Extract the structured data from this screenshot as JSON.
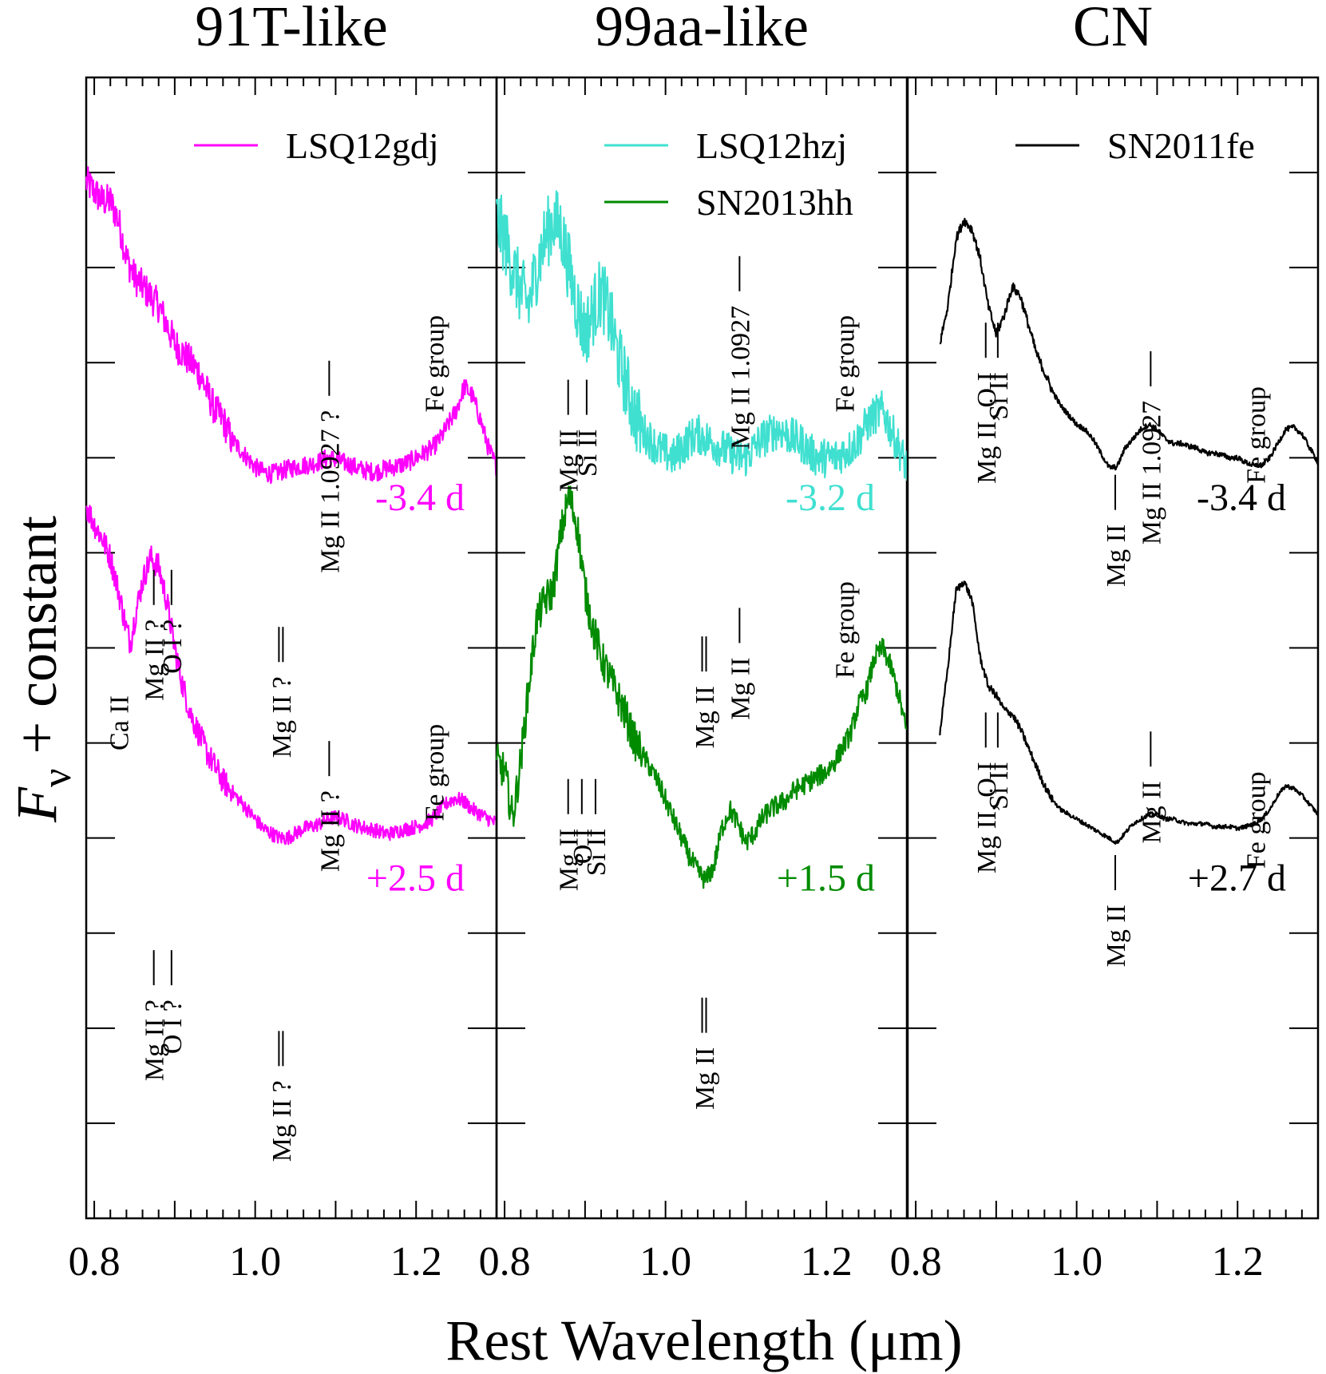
{
  "chart_data": {
    "type": "line",
    "ylabel_main": "F",
    "ylabel_sub": "ν",
    "ylabel_rest": " + constant",
    "xlabel": "Rest Wavelength (μm)",
    "xlim": [
      0.79,
      1.3
    ],
    "xticks": [
      "0.8",
      "1.0",
      "1.2"
    ],
    "panels": [
      {
        "title": "91T-like",
        "legend": [
          {
            "label": "LSQ12gdj",
            "color": "#ff00ff"
          }
        ],
        "spectra": [
          {
            "name": "LSQ12gdj",
            "phase": "-3.4 d",
            "color": "#ff00ff",
            "noise": 0.18,
            "x": [
              0.79,
              0.8,
              0.81,
              0.82,
              0.83,
              0.84,
              0.85,
              0.86,
              0.87,
              0.88,
              0.89,
              0.9,
              0.91,
              0.92,
              0.93,
              0.94,
              0.95,
              0.96,
              0.97,
              0.98,
              0.99,
              1.0,
              1.01,
              1.02,
              1.03,
              1.04,
              1.05,
              1.06,
              1.07,
              1.08,
              1.09,
              1.1,
              1.11,
              1.12,
              1.13,
              1.14,
              1.15,
              1.16,
              1.17,
              1.18,
              1.19,
              1.2,
              1.21,
              1.22,
              1.23,
              1.24,
              1.25,
              1.26,
              1.27,
              1.28,
              1.29,
              1.3
            ],
            "y": [
              10.9,
              10.8,
              10.7,
              10.7,
              10.5,
              10.1,
              9.9,
              9.8,
              9.7,
              9.6,
              9.4,
              9.2,
              9.1,
              9.0,
              8.9,
              8.7,
              8.5,
              8.4,
              8.2,
              8.1,
              8.0,
              7.9,
              7.85,
              7.83,
              7.85,
              7.88,
              7.9,
              7.92,
              7.93,
              7.96,
              8.0,
              7.98,
              7.95,
              7.92,
              7.88,
              7.86,
              7.85,
              7.88,
              7.9,
              7.92,
              7.95,
              8.0,
              8.05,
              8.1,
              8.2,
              8.35,
              8.5,
              8.75,
              8.65,
              8.4,
              8.1,
              7.9
            ]
          },
          {
            "name": "LSQ12gdj",
            "phase": "+2.5 d",
            "color": "#ff00ff",
            "noise": 0.14,
            "x": [
              0.79,
              0.8,
              0.81,
              0.82,
              0.83,
              0.84,
              0.845,
              0.85,
              0.86,
              0.87,
              0.88,
              0.89,
              0.9,
              0.91,
              0.92,
              0.93,
              0.94,
              0.95,
              0.96,
              0.97,
              0.98,
              0.99,
              1.0,
              1.01,
              1.02,
              1.03,
              1.04,
              1.05,
              1.06,
              1.07,
              1.08,
              1.09,
              1.1,
              1.11,
              1.12,
              1.13,
              1.14,
              1.15,
              1.16,
              1.17,
              1.18,
              1.19,
              1.2,
              1.21,
              1.22,
              1.23,
              1.24,
              1.25,
              1.26,
              1.27,
              1.28,
              1.29,
              1.3
            ],
            "y": [
              7.5,
              7.3,
              7.15,
              6.95,
              6.6,
              6.2,
              6.05,
              6.3,
              6.7,
              6.95,
              6.85,
              6.5,
              6.0,
              5.6,
              5.3,
              5.1,
              4.9,
              4.75,
              4.6,
              4.5,
              4.4,
              4.3,
              4.2,
              4.1,
              4.05,
              4.0,
              4.0,
              4.05,
              4.1,
              4.12,
              4.15,
              4.2,
              4.22,
              4.2,
              4.15,
              4.12,
              4.1,
              4.08,
              4.05,
              4.05,
              4.08,
              4.1,
              4.12,
              4.15,
              4.2,
              4.3,
              4.38,
              4.42,
              4.38,
              4.3,
              4.25,
              4.2,
              4.15
            ]
          }
        ],
        "annotations": [
          {
            "text": "Mg II ?",
            "x": 0.874,
            "y": 6.3,
            "n": 1
          },
          {
            "text": "O I ?",
            "x": 0.896,
            "y": 6.3,
            "n": 1
          },
          {
            "text": "Mg II ?",
            "x": 1.032,
            "y": 5.7,
            "n": 2
          },
          {
            "text": "Mg II 1.0927 ?",
            "x": 1.092,
            "y": 8.5,
            "n": 1
          },
          {
            "text": "Fe group",
            "x": 1.222,
            "y": 9.5,
            "n": 0
          },
          {
            "text": "Ca II",
            "x": 0.83,
            "y": 5.5,
            "n": 0
          },
          {
            "text": "Mg II ?",
            "x": 0.874,
            "y": 2.3,
            "n": 1
          },
          {
            "text": "O I ?",
            "x": 0.896,
            "y": 2.3,
            "n": 1
          },
          {
            "text": "Mg II ?",
            "x": 1.032,
            "y": 1.45,
            "n": 2
          },
          {
            "text": "Mg II ?",
            "x": 1.092,
            "y": 4.5,
            "n": 1
          },
          {
            "text": "Fe group",
            "x": 1.222,
            "y": 5.2,
            "n": 0
          }
        ]
      },
      {
        "title": "99aa-like",
        "legend": [
          {
            "label": "LSQ12hzj",
            "color": "#40e0d0"
          },
          {
            "label": "SN2013hh",
            "color": "#008b00"
          }
        ],
        "spectra": [
          {
            "name": "LSQ12hzj",
            "phase": "-3.2 d",
            "color": "#40e0d0",
            "noise": 0.38,
            "x": [
              0.79,
              0.8,
              0.81,
              0.82,
              0.83,
              0.84,
              0.85,
              0.86,
              0.87,
              0.88,
              0.89,
              0.9,
              0.91,
              0.92,
              0.93,
              0.94,
              0.95,
              0.96,
              0.97,
              0.98,
              0.99,
              1.0,
              1.01,
              1.02,
              1.03,
              1.04,
              1.05,
              1.06,
              1.07,
              1.08,
              1.09,
              1.1,
              1.11,
              1.12,
              1.13,
              1.14,
              1.15,
              1.16,
              1.17,
              1.18,
              1.19,
              1.2,
              1.21,
              1.22,
              1.23,
              1.24,
              1.25,
              1.26,
              1.27,
              1.28,
              1.29,
              1.3
            ],
            "y": [
              10.5,
              10.3,
              10.0,
              9.75,
              9.6,
              10.0,
              10.3,
              10.5,
              10.4,
              10.0,
              9.6,
              9.3,
              9.55,
              9.75,
              9.5,
              9.1,
              8.8,
              8.5,
              8.3,
              8.2,
              8.1,
              8.05,
              8.0,
              8.1,
              8.2,
              8.25,
              8.2,
              8.15,
              8.1,
              8.05,
              8.0,
              8.0,
              8.1,
              8.2,
              8.25,
              8.3,
              8.25,
              8.2,
              8.15,
              8.05,
              8.0,
              8.0,
              8.0,
              8.05,
              8.1,
              8.2,
              8.35,
              8.45,
              8.5,
              8.3,
              8.1,
              7.9
            ]
          },
          {
            "name": "SN2013hh",
            "phase": "+1.5 d",
            "color": "#008b00",
            "noise": 0.2,
            "x": [
              0.79,
              0.8,
              0.81,
              0.82,
              0.83,
              0.84,
              0.85,
              0.86,
              0.87,
              0.88,
              0.89,
              0.9,
              0.91,
              0.92,
              0.93,
              0.94,
              0.95,
              0.96,
              0.97,
              0.98,
              0.99,
              1.0,
              1.01,
              1.02,
              1.03,
              1.04,
              1.05,
              1.06,
              1.07,
              1.08,
              1.09,
              1.1,
              1.11,
              1.12,
              1.13,
              1.14,
              1.15,
              1.16,
              1.17,
              1.18,
              1.19,
              1.2,
              1.21,
              1.22,
              1.23,
              1.24,
              1.25,
              1.26,
              1.27,
              1.28,
              1.29,
              1.3
            ],
            "y": [
              4.8,
              4.7,
              4.2,
              4.8,
              5.6,
              6.3,
              6.5,
              6.6,
              7.2,
              7.6,
              7.3,
              6.6,
              6.2,
              5.9,
              5.7,
              5.5,
              5.3,
              5.05,
              4.9,
              4.75,
              4.6,
              4.4,
              4.2,
              4.0,
              3.8,
              3.65,
              3.55,
              3.7,
              4.1,
              4.3,
              4.15,
              3.95,
              4.05,
              4.2,
              4.3,
              4.35,
              4.4,
              4.5,
              4.55,
              4.6,
              4.65,
              4.7,
              4.8,
              4.95,
              5.1,
              5.4,
              5.55,
              5.9,
              6.0,
              5.8,
              5.5,
              5.1
            ]
          }
        ],
        "annotations": [
          {
            "text": "Mg II",
            "x": 0.879,
            "y": 8.3,
            "n": 1
          },
          {
            "text": "Si II",
            "x": 0.902,
            "y": 8.3,
            "n": 1
          },
          {
            "text": "Mg II 1.0927",
            "x": 1.092,
            "y": 9.6,
            "n": 1
          },
          {
            "text": "Mg II",
            "x": 1.048,
            "y": 5.6,
            "n": 2
          },
          {
            "text": "Fe group",
            "x": 1.222,
            "y": 9.5,
            "n": 0
          },
          {
            "text": "Mg II",
            "x": 0.879,
            "y": 4.1,
            "n": 1
          },
          {
            "text": "O I",
            "x": 0.896,
            "y": 4.1,
            "n": 1
          },
          {
            "text": "Si II",
            "x": 0.913,
            "y": 4.1,
            "n": 1
          },
          {
            "text": "Mg II",
            "x": 1.092,
            "y": 5.9,
            "n": 1
          },
          {
            "text": "Mg II",
            "x": 1.048,
            "y": 1.8,
            "n": 2
          },
          {
            "text": "Fe group",
            "x": 1.222,
            "y": 6.7,
            "n": 0
          }
        ]
      },
      {
        "title": "CN",
        "legend": [
          {
            "label": "SN2011fe",
            "color": "#000000"
          }
        ],
        "spectra": [
          {
            "name": "SN2011fe",
            "phase": "-3.4 d",
            "color": "#000000",
            "noise": 0.05,
            "x": [
              0.83,
              0.84,
              0.85,
              0.86,
              0.87,
              0.88,
              0.89,
              0.9,
              0.91,
              0.92,
              0.93,
              0.94,
              0.95,
              0.96,
              0.97,
              0.98,
              0.99,
              1.0,
              1.01,
              1.02,
              1.03,
              1.04,
              1.05,
              1.06,
              1.07,
              1.08,
              1.09,
              1.1,
              1.11,
              1.12,
              1.13,
              1.14,
              1.15,
              1.16,
              1.17,
              1.18,
              1.19,
              1.2,
              1.21,
              1.22,
              1.23,
              1.24,
              1.25,
              1.26,
              1.27,
              1.28,
              1.29,
              1.3
            ],
            "y": [
              9.2,
              9.6,
              10.3,
              10.5,
              10.4,
              10.1,
              9.6,
              9.3,
              9.5,
              9.8,
              9.7,
              9.4,
              9.1,
              8.9,
              8.7,
              8.55,
              8.45,
              8.35,
              8.3,
              8.2,
              8.05,
              7.9,
              7.9,
              8.1,
              8.2,
              8.3,
              8.35,
              8.3,
              8.2,
              8.15,
              8.15,
              8.12,
              8.1,
              8.05,
              8.05,
              8.03,
              8.0,
              8.0,
              7.95,
              7.92,
              7.92,
              8.0,
              8.15,
              8.3,
              8.32,
              8.25,
              8.1,
              7.95
            ]
          },
          {
            "name": "SN2011fe",
            "phase": "+2.7 d",
            "color": "#000000",
            "noise": 0.04,
            "x": [
              0.83,
              0.84,
              0.85,
              0.86,
              0.87,
              0.88,
              0.89,
              0.9,
              0.91,
              0.92,
              0.93,
              0.94,
              0.95,
              0.96,
              0.97,
              0.98,
              0.99,
              1.0,
              1.01,
              1.02,
              1.03,
              1.04,
              1.05,
              1.06,
              1.07,
              1.08,
              1.09,
              1.1,
              1.11,
              1.12,
              1.13,
              1.14,
              1.15,
              1.16,
              1.17,
              1.18,
              1.19,
              1.2,
              1.21,
              1.22,
              1.23,
              1.24,
              1.25,
              1.26,
              1.27,
              1.28,
              1.29,
              1.3
            ],
            "y": [
              5.1,
              5.8,
              6.6,
              6.7,
              6.5,
              5.9,
              5.6,
              5.5,
              5.35,
              5.3,
              5.15,
              4.95,
              4.75,
              4.55,
              4.4,
              4.3,
              4.25,
              4.2,
              4.15,
              4.1,
              4.05,
              4.0,
              3.95,
              4.05,
              4.15,
              4.2,
              4.25,
              4.25,
              4.2,
              4.2,
              4.17,
              4.15,
              4.15,
              4.15,
              4.12,
              4.12,
              4.12,
              4.1,
              4.12,
              4.15,
              4.2,
              4.3,
              4.45,
              4.55,
              4.52,
              4.45,
              4.35,
              4.25
            ]
          }
        ],
        "annotations": [
          {
            "text": "Mg II, O I",
            "x": 0.887,
            "y": 8.9,
            "n": 1
          },
          {
            "text": "Si II",
            "x": 0.902,
            "y": 8.9,
            "n": 1
          },
          {
            "text": "Mg II 1.0927",
            "x": 1.092,
            "y": 8.6,
            "n": 1
          },
          {
            "text": "Mg II",
            "x": 1.048,
            "y": 7.3,
            "n": 1
          },
          {
            "text": "Fe group",
            "x": 1.222,
            "y": 8.75,
            "n": 0
          },
          {
            "text": "Mg II, O I",
            "x": 0.887,
            "y": 4.8,
            "n": 1
          },
          {
            "text": "Si II",
            "x": 0.902,
            "y": 4.8,
            "n": 1
          },
          {
            "text": "Mg II",
            "x": 1.092,
            "y": 4.6,
            "n": 1
          },
          {
            "text": "Mg II",
            "x": 1.048,
            "y": 3.3,
            "n": 1
          },
          {
            "text": "Fe group",
            "x": 1.222,
            "y": 4.7,
            "n": 0
          }
        ]
      }
    ]
  }
}
